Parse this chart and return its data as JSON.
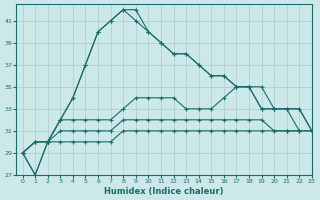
{
  "xlabel": "Humidex (Indice chaleur)",
  "background_color": "#cce8e8",
  "line_color": "#1a6b6b",
  "grid_color": "#b0d0d0",
  "xlim": [
    -0.5,
    23
  ],
  "ylim": [
    27,
    42.5
  ],
  "yticks": [
    27,
    29,
    31,
    33,
    35,
    37,
    39,
    41
  ],
  "xticks": [
    0,
    1,
    2,
    3,
    4,
    5,
    6,
    7,
    8,
    9,
    10,
    11,
    12,
    13,
    14,
    15,
    16,
    17,
    18,
    19,
    20,
    21,
    22,
    23
  ],
  "series": [
    [
      29,
      27,
      30,
      32,
      34,
      37,
      40,
      41,
      42,
      42,
      40,
      39,
      38,
      38,
      37,
      36,
      36,
      35,
      35,
      33,
      33,
      33,
      31,
      null
    ],
    [
      29,
      27,
      30,
      32,
      34,
      37,
      40,
      41,
      42,
      41,
      40,
      39,
      38,
      38,
      37,
      36,
      36,
      35,
      35,
      33,
      33,
      33,
      33,
      31
    ],
    [
      29,
      30,
      30,
      32,
      32,
      32,
      32,
      32,
      33,
      34,
      34,
      34,
      34,
      33,
      33,
      33,
      34,
      35,
      35,
      35,
      33,
      33,
      33,
      31
    ],
    [
      29,
      30,
      30,
      31,
      31,
      31,
      31,
      31,
      32,
      32,
      32,
      32,
      32,
      32,
      32,
      32,
      32,
      32,
      32,
      32,
      31,
      31,
      31,
      31
    ],
    [
      29,
      30,
      30,
      30,
      30,
      30,
      30,
      30,
      31,
      31,
      31,
      31,
      31,
      31,
      31,
      31,
      31,
      31,
      31,
      31,
      31,
      31,
      31,
      31
    ]
  ]
}
